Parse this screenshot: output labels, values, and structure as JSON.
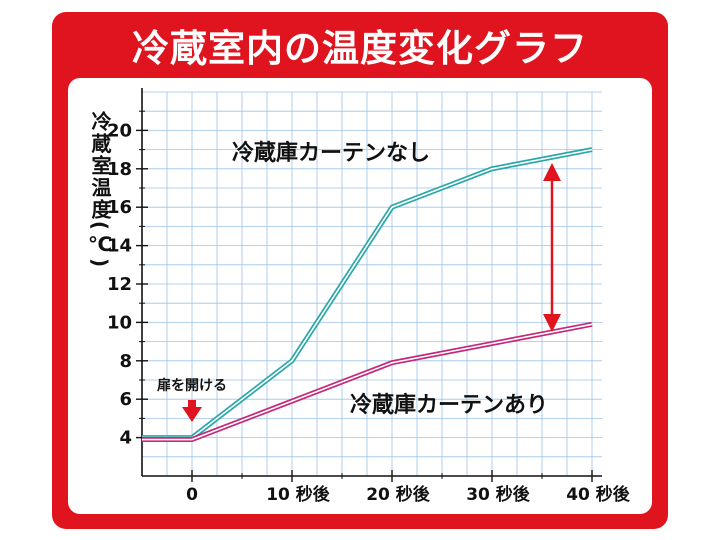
{
  "title": "冷蔵室内の温度変化グラフ",
  "colors": {
    "frame": "#e0141e",
    "grid": "#9ec3e6",
    "axis": "#111111",
    "series_no_curtain": "#2aa7a8",
    "series_curtain": "#c4297a",
    "arrow": "#e0141e"
  },
  "chart_data": {
    "type": "line",
    "ylabel": "冷蔵室温度(℃)",
    "xlabel": "",
    "x": [
      -5,
      0,
      10,
      20,
      30,
      40
    ],
    "xticks": [
      {
        "value": 0,
        "label": "0"
      },
      {
        "value": 10,
        "label": "10 秒後"
      },
      {
        "value": 20,
        "label": "20 秒後"
      },
      {
        "value": 30,
        "label": "30 秒後"
      },
      {
        "value": 40,
        "label": "40 秒後"
      }
    ],
    "yticks": [
      4,
      6,
      8,
      10,
      12,
      14,
      16,
      18,
      20
    ],
    "xlim": [
      -5,
      41
    ],
    "ylim": [
      2,
      22
    ],
    "grid": true,
    "series": [
      {
        "name": "冷蔵庫カーテンなし",
        "color": "#2aa7a8",
        "values": [
          4.0,
          4.0,
          8.0,
          16.0,
          18.0,
          19.0
        ]
      },
      {
        "name": "冷蔵庫カーテンあり",
        "color": "#c4297a",
        "values": [
          3.9,
          3.9,
          5.9,
          7.9,
          8.9,
          9.9
        ]
      }
    ],
    "annotations": [
      {
        "text": "扉を開ける",
        "x": 0,
        "type": "down-arrow"
      },
      {
        "text": "",
        "x": 36,
        "y_from": 9.5,
        "y_to": 18.3,
        "type": "double-arrow"
      }
    ]
  }
}
